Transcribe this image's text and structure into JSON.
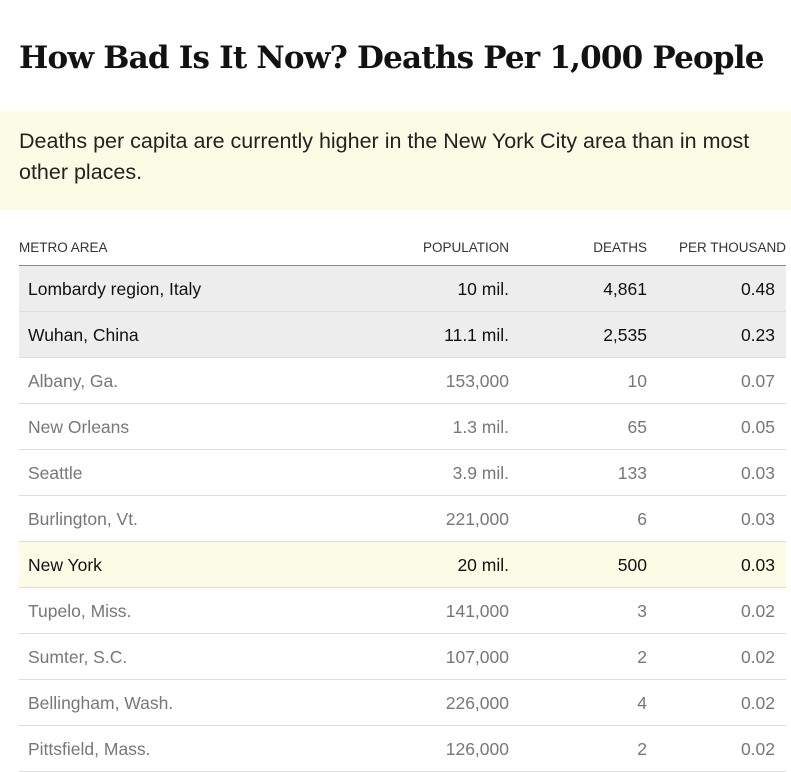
{
  "title": "How Bad Is It Now? Deaths Per 1,000 People",
  "note": "Deaths per capita are currently higher in the New York City area than in most other places.",
  "chart_data": {
    "type": "table",
    "columns": [
      "METRO AREA",
      "POPULATION",
      "DEATHS",
      "PER THOUSAND"
    ],
    "rows": [
      {
        "metro": "Lombardy region, Italy",
        "population": "10 mil.",
        "deaths": "4,861",
        "per_thousand": "0.48",
        "highlight": "gray"
      },
      {
        "metro": "Wuhan, China",
        "population": "11.1 mil.",
        "deaths": "2,535",
        "per_thousand": "0.23",
        "highlight": "gray"
      },
      {
        "metro": "Albany, Ga.",
        "population": "153,000",
        "deaths": "10",
        "per_thousand": "0.07",
        "highlight": "none"
      },
      {
        "metro": "New Orleans",
        "population": "1.3 mil.",
        "deaths": "65",
        "per_thousand": "0.05",
        "highlight": "none"
      },
      {
        "metro": "Seattle",
        "population": "3.9 mil.",
        "deaths": "133",
        "per_thousand": "0.03",
        "highlight": "none"
      },
      {
        "metro": "Burlington, Vt.",
        "population": "221,000",
        "deaths": "6",
        "per_thousand": "0.03",
        "highlight": "none"
      },
      {
        "metro": "New York",
        "population": "20 mil.",
        "deaths": "500",
        "per_thousand": "0.03",
        "highlight": "yellow"
      },
      {
        "metro": "Tupelo, Miss.",
        "population": "141,000",
        "deaths": "3",
        "per_thousand": "0.02",
        "highlight": "none"
      },
      {
        "metro": "Sumter, S.C.",
        "population": "107,000",
        "deaths": "2",
        "per_thousand": "0.02",
        "highlight": "none"
      },
      {
        "metro": "Bellingham, Wash.",
        "population": "226,000",
        "deaths": "4",
        "per_thousand": "0.02",
        "highlight": "none"
      },
      {
        "metro": "Pittsfield, Mass.",
        "population": "126,000",
        "deaths": "2",
        "per_thousand": "0.02",
        "highlight": "none"
      }
    ]
  },
  "colors": {
    "gray_highlight": "#ededed",
    "yellow_highlight": "#fcfce6",
    "muted_text": "#777777",
    "strong_text": "#111111"
  }
}
